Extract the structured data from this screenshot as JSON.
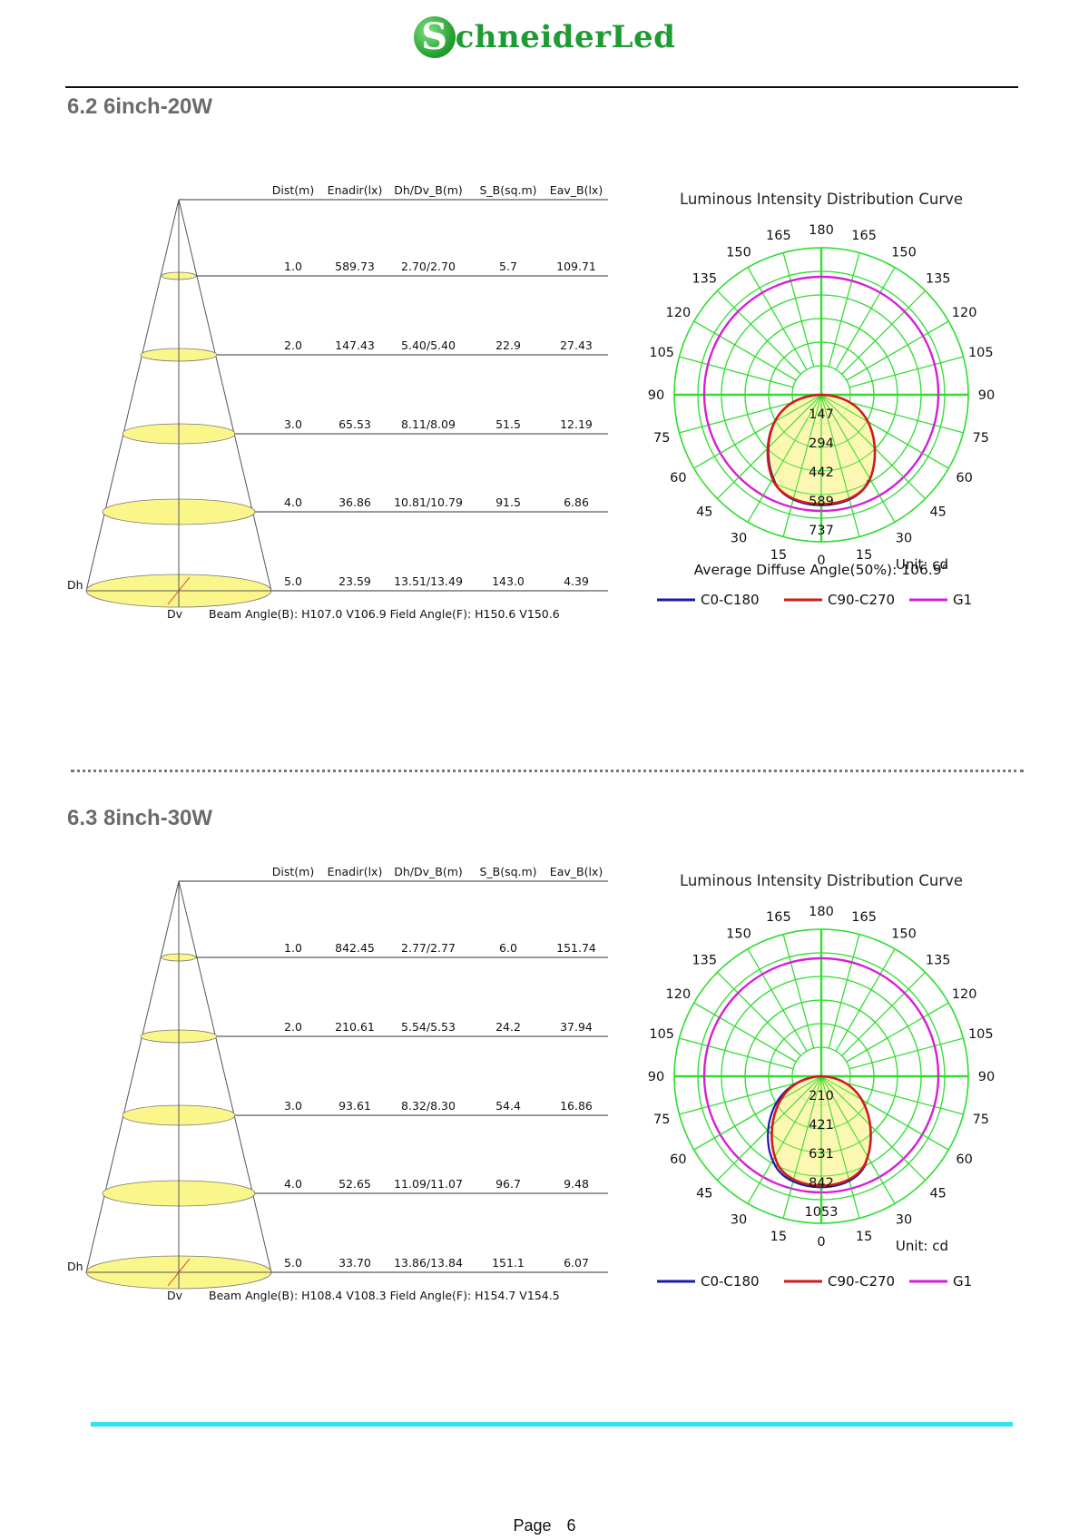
{
  "logo": {
    "initial": "S",
    "rest": "chneiderLed"
  },
  "sections": [
    {
      "title": "6.2 6inch-20W",
      "cone": {
        "headers": [
          "Dist(m)",
          "Enadir(lx)",
          "Dh/Dv_B(m)",
          "S_B(sq.m)",
          "Eav_B(lx)"
        ],
        "rows": [
          [
            "1.0",
            "589.73",
            "2.70/2.70",
            "5.7",
            "109.71"
          ],
          [
            "2.0",
            "147.43",
            "5.40/5.40",
            "22.9",
            "27.43"
          ],
          [
            "3.0",
            "65.53",
            "8.11/8.09",
            "51.5",
            "12.19"
          ],
          [
            "4.0",
            "36.86",
            "10.81/10.79",
            "91.5",
            "6.86"
          ],
          [
            "5.0",
            "23.59",
            "13.51/13.49",
            "143.0",
            "4.39"
          ]
        ],
        "dh": "Dh",
        "dv": "Dv",
        "beam": "Beam Angle(B): H107.0 V106.9  Field Angle(F): H150.6 V150.6"
      },
      "polar": {
        "title": "Luminous Intensity Distribution Curve",
        "ring_labels": [
          "147",
          "294",
          "442",
          "589",
          "737"
        ],
        "angle_labels": [
          "180",
          "165",
          "150",
          "135",
          "120",
          "105",
          "90",
          "75",
          "60",
          "45",
          "30",
          "15",
          "0"
        ],
        "avg_angle": "Average Diffuse Angle(50%): 106.9°",
        "unit": "Unit: cd",
        "legend": [
          "C0-C180",
          "C90-C270",
          "G1"
        ]
      }
    },
    {
      "title": "6.3 8inch-30W",
      "cone": {
        "headers": [
          "Dist(m)",
          "Enadir(lx)",
          "Dh/Dv_B(m)",
          "S_B(sq.m)",
          "Eav_B(lx)"
        ],
        "rows": [
          [
            "1.0",
            "842.45",
            "2.77/2.77",
            "6.0",
            "151.74"
          ],
          [
            "2.0",
            "210.61",
            "5.54/5.53",
            "24.2",
            "37.94"
          ],
          [
            "3.0",
            "93.61",
            "8.32/8.30",
            "54.4",
            "16.86"
          ],
          [
            "4.0",
            "52.65",
            "11.09/11.07",
            "96.7",
            "9.48"
          ],
          [
            "5.0",
            "33.70",
            "13.86/13.84",
            "151.1",
            "6.07"
          ]
        ],
        "dh": "Dh",
        "dv": "Dv",
        "beam": "Beam Angle(B): H108.4 V108.3  Field Angle(F): H154.7 V154.5"
      },
      "polar": {
        "title": "Luminous Intensity Distribution Curve",
        "ring_labels": [
          "210",
          "421",
          "631",
          "842",
          "1053"
        ],
        "angle_labels": [
          "180",
          "165",
          "150",
          "135",
          "120",
          "105",
          "90",
          "75",
          "60",
          "45",
          "30",
          "15",
          "0"
        ],
        "avg_angle": "",
        "unit": "Unit: cd",
        "legend": [
          "C0-C180",
          "C90-C270",
          "G1"
        ]
      }
    }
  ],
  "footer": {
    "label": "Page",
    "number": "6"
  },
  "colors": {
    "grid": "#33dd33",
    "c0": "#1a1aa8",
    "c90": "#d11a1a",
    "g1": "#d61fd6",
    "fill": "#fbf6a4",
    "accent_rule": "#33e0f0",
    "title_gray": "#6b6b6b"
  }
}
